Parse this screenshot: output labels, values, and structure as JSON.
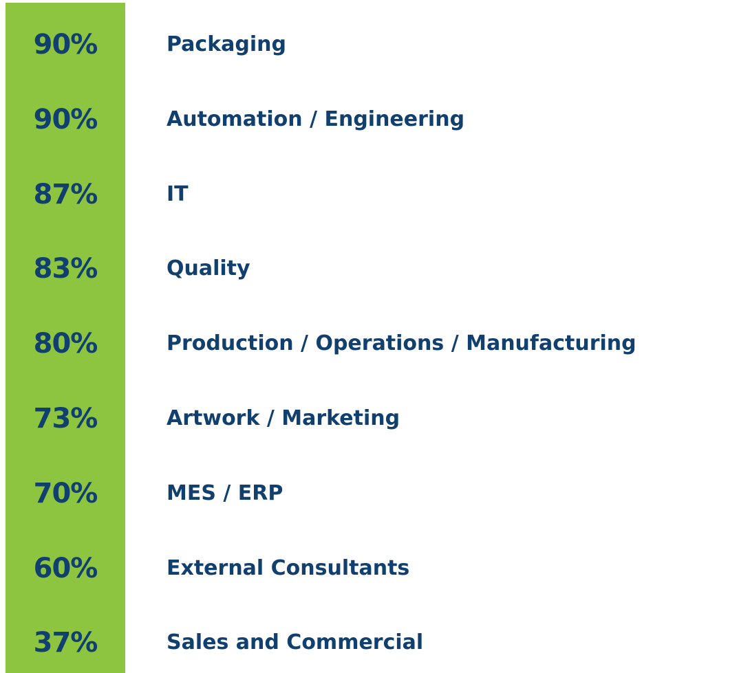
{
  "items": [
    {
      "percent": "90%",
      "label": "Packaging"
    },
    {
      "percent": "90%",
      "label": "Automation / Engineering"
    },
    {
      "percent": "87%",
      "label": "IT"
    },
    {
      "percent": "83%",
      "label": "Quality"
    },
    {
      "percent": "80%",
      "label": "Production / Operations / Manufacturing"
    },
    {
      "percent": "73%",
      "label": "Artwork / Marketing"
    },
    {
      "percent": "70%",
      "label": "MES / ERP"
    },
    {
      "percent": "60%",
      "label": "External Consultants"
    },
    {
      "percent": "37%",
      "label": "Sales and Commercial"
    }
  ]
}
